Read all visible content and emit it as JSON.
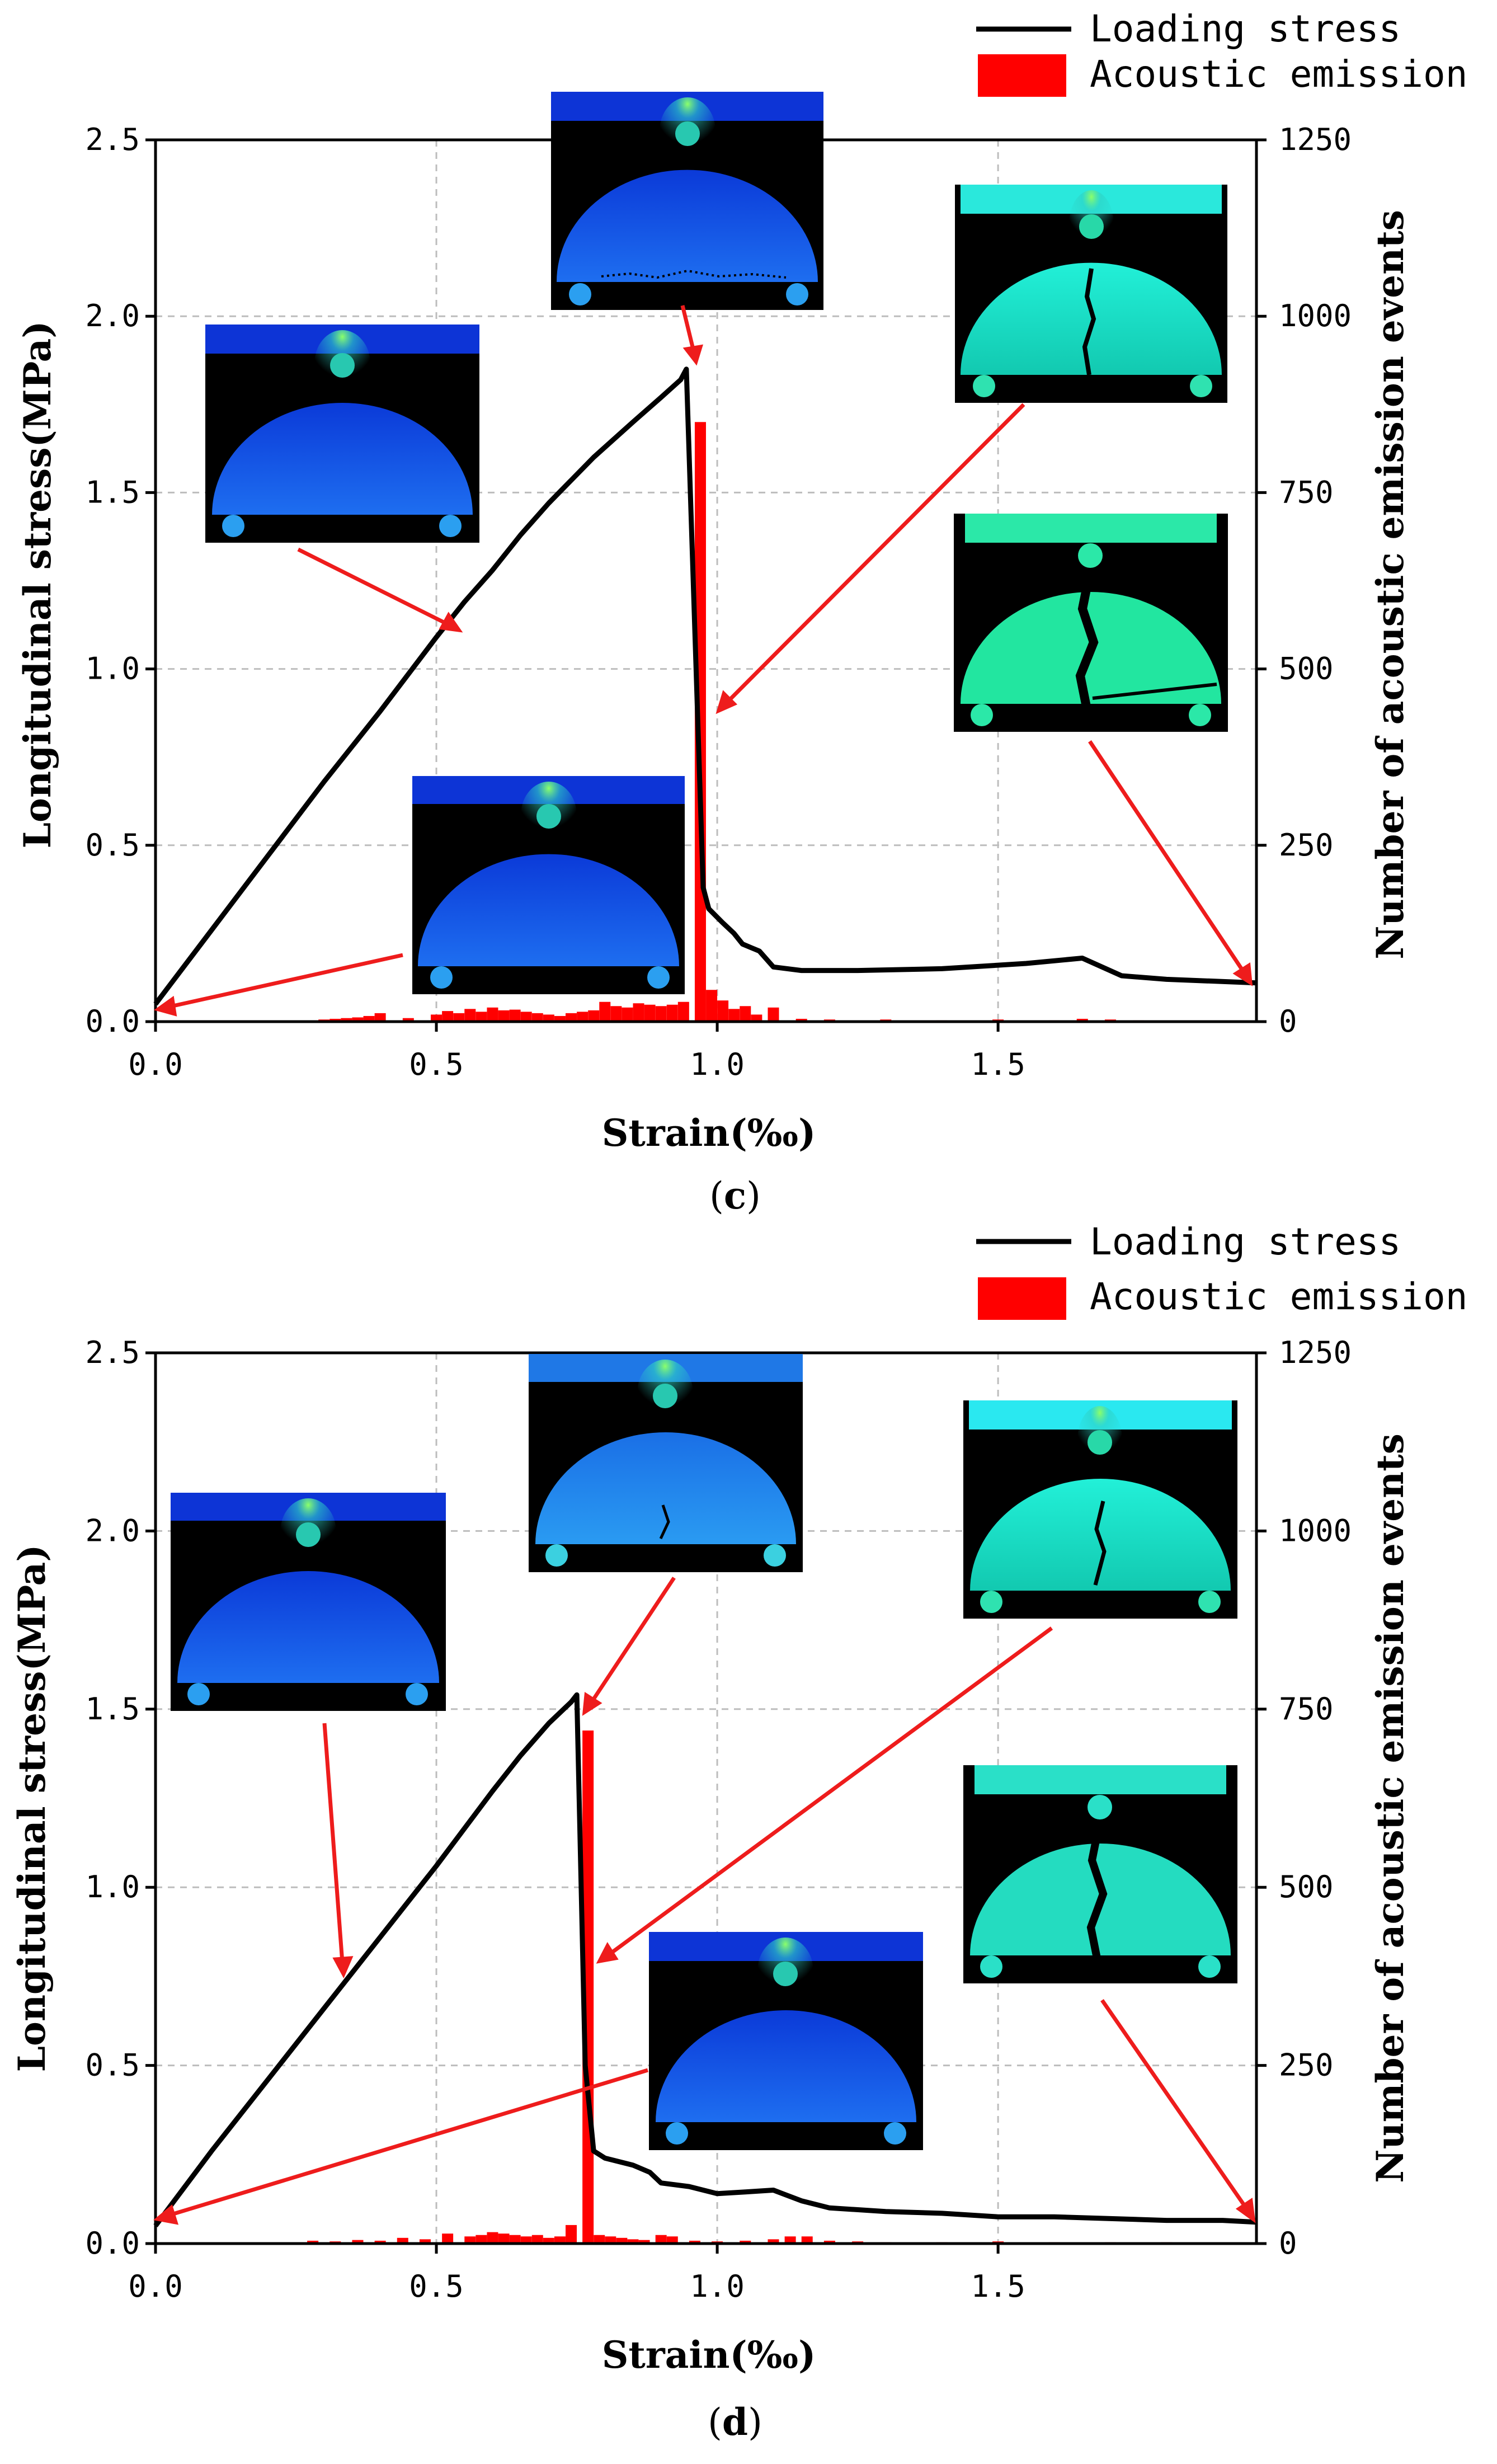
{
  "legend": {
    "line_label": "Loading stress",
    "bar_label": "Acoustic emission"
  },
  "colors": {
    "line": "#000000",
    "bar": "#ff0000",
    "arrow": "#ee1c1c",
    "grid": "#bdbdbd"
  },
  "chart_data": [
    {
      "id": "c",
      "caption_letter": "c",
      "type": "line+bar",
      "xlabel": "Strain(‰)",
      "ylabel": "Longitudinal stress(MPa)",
      "y2label": "Number of acoustic emission events",
      "xlim": [
        0,
        1.96
      ],
      "ylim": [
        0,
        2.5
      ],
      "y2lim": [
        0,
        1250
      ],
      "xticks": [
        "0.0",
        "0.5",
        "1.0",
        "1.5"
      ],
      "yticks": [
        "0.0",
        "0.5",
        "1.0",
        "1.5",
        "2.0",
        "2.5"
      ],
      "y2ticks": [
        "0",
        "250",
        "500",
        "750",
        "1000",
        "1250"
      ],
      "grid": true,
      "stress_line": {
        "name": "Loading stress",
        "x": [
          0,
          0.1,
          0.2,
          0.3,
          0.4,
          0.5,
          0.55,
          0.6,
          0.65,
          0.7,
          0.78,
          0.85,
          0.9,
          0.935,
          0.945,
          0.975,
          0.985,
          1.01,
          1.03,
          1.045,
          1.06,
          1.075,
          1.1,
          1.15,
          1.25,
          1.4,
          1.55,
          1.65,
          1.72,
          1.8,
          1.96
        ],
        "y": [
          0.05,
          0.26,
          0.47,
          0.68,
          0.88,
          1.09,
          1.19,
          1.28,
          1.38,
          1.47,
          1.6,
          1.7,
          1.77,
          1.82,
          1.85,
          0.38,
          0.32,
          0.28,
          0.25,
          0.22,
          0.21,
          0.2,
          0.155,
          0.145,
          0.145,
          0.15,
          0.165,
          0.18,
          0.13,
          0.12,
          0.11
        ]
      },
      "ae_bars": {
        "name": "Acoustic emission",
        "x": [
          0.3,
          0.32,
          0.34,
          0.36,
          0.38,
          0.4,
          0.45,
          0.5,
          0.52,
          0.54,
          0.56,
          0.58,
          0.6,
          0.62,
          0.64,
          0.66,
          0.68,
          0.7,
          0.72,
          0.74,
          0.76,
          0.78,
          0.8,
          0.82,
          0.84,
          0.86,
          0.88,
          0.9,
          0.92,
          0.94,
          0.97,
          0.99,
          1.01,
          1.03,
          1.05,
          1.07,
          1.1,
          1.15,
          1.2,
          1.3,
          1.4,
          1.5,
          1.6,
          1.65,
          1.7,
          1.75
        ],
        "values": [
          3,
          4,
          5,
          6,
          8,
          12,
          5,
          10,
          15,
          12,
          18,
          14,
          20,
          16,
          17,
          14,
          12,
          10,
          8,
          12,
          14,
          16,
          28,
          22,
          20,
          26,
          24,
          22,
          24,
          28,
          850,
          45,
          30,
          18,
          22,
          10,
          20,
          4,
          3,
          3,
          2,
          3,
          2,
          4,
          3,
          2
        ]
      },
      "insets": [
        "Numerical crack snapshot (pre-peak loading)",
        "Numerical crack snapshot (initial state)",
        "Numerical crack snapshot (peak stress)",
        "Numerical crack snapshot (post-peak cracking)",
        "Numerical crack snapshot (final failure)"
      ]
    },
    {
      "id": "d",
      "caption_letter": "d",
      "type": "line+bar",
      "xlabel": "Strain(‰)",
      "ylabel": "Longitudinal stress(MPa)",
      "y2label": "Number of acoustic emission events",
      "xlim": [
        0,
        1.96
      ],
      "ylim": [
        0,
        2.5
      ],
      "y2lim": [
        0,
        1250
      ],
      "xticks": [
        "0.0",
        "0.5",
        "1.0",
        "1.5"
      ],
      "yticks": [
        "0.0",
        "0.5",
        "1.0",
        "1.5",
        "2.0",
        "2.5"
      ],
      "y2ticks": [
        "0",
        "250",
        "500",
        "750",
        "1000",
        "1250"
      ],
      "grid": true,
      "stress_line": {
        "name": "Loading stress",
        "x": [
          0,
          0.1,
          0.2,
          0.3,
          0.4,
          0.5,
          0.6,
          0.65,
          0.7,
          0.74,
          0.75,
          0.765,
          0.78,
          0.8,
          0.85,
          0.88,
          0.9,
          0.95,
          1.0,
          1.05,
          1.1,
          1.15,
          1.2,
          1.3,
          1.4,
          1.5,
          1.6,
          1.7,
          1.8,
          1.9,
          1.96
        ],
        "y": [
          0.05,
          0.26,
          0.46,
          0.66,
          0.86,
          1.06,
          1.27,
          1.37,
          1.46,
          1.52,
          1.54,
          0.5,
          0.26,
          0.24,
          0.22,
          0.2,
          0.17,
          0.16,
          0.14,
          0.145,
          0.15,
          0.12,
          0.1,
          0.09,
          0.085,
          0.075,
          0.075,
          0.07,
          0.065,
          0.065,
          0.06
        ]
      },
      "ae_bars": {
        "name": "Acoustic emission",
        "x": [
          0.28,
          0.32,
          0.36,
          0.4,
          0.44,
          0.48,
          0.52,
          0.56,
          0.58,
          0.6,
          0.62,
          0.64,
          0.66,
          0.68,
          0.7,
          0.72,
          0.74,
          0.77,
          0.79,
          0.81,
          0.83,
          0.85,
          0.87,
          0.9,
          0.92,
          0.96,
          1.0,
          1.05,
          1.1,
          1.13,
          1.16,
          1.2,
          1.25,
          1.3,
          1.4,
          1.5,
          1.6,
          1.7,
          1.8
        ],
        "values": [
          4,
          3,
          5,
          4,
          8,
          6,
          14,
          10,
          12,
          16,
          14,
          12,
          10,
          12,
          8,
          10,
          26,
          720,
          12,
          10,
          8,
          6,
          5,
          12,
          10,
          4,
          3,
          4,
          6,
          10,
          10,
          4,
          3,
          2,
          2,
          3,
          2,
          2,
          2
        ]
      },
      "insets": [
        "Numerical crack snapshot (pre-peak loading)",
        "Numerical crack snapshot (peak stress)",
        "Numerical crack snapshot (initial state)",
        "Numerical crack snapshot (post-peak cracking)",
        "Numerical crack snapshot (final failure)"
      ]
    }
  ]
}
